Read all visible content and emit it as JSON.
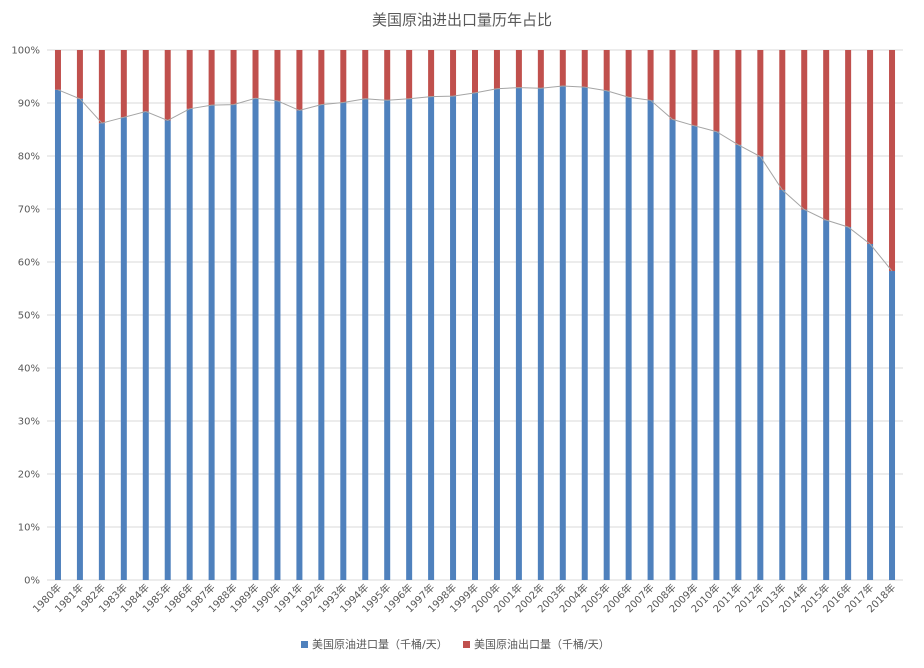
{
  "chart_data": {
    "type": "bar",
    "stacked": true,
    "percent_stacked": true,
    "title": "美国原油进出口量历年占比",
    "categories": [
      "1980年",
      "1981年",
      "1982年",
      "1983年",
      "1984年",
      "1985年",
      "1986年",
      "1987年",
      "1988年",
      "1989年",
      "1990年",
      "1991年",
      "1992年",
      "1993年",
      "1994年",
      "1995年",
      "1996年",
      "1997年",
      "1998年",
      "1999年",
      "2000年",
      "2001年",
      "2002年",
      "2003年",
      "2004年",
      "2005年",
      "2006年",
      "2007年",
      "2008年",
      "2009年",
      "2010年",
      "2011年",
      "2012年",
      "2013年",
      "2014年",
      "2015年",
      "2016年",
      "2017年",
      "2018年"
    ],
    "series": [
      {
        "name": "美国原油进口量（千桶/天）",
        "color": "#4f81bd",
        "values": [
          92.5,
          90.8,
          86.2,
          87.3,
          88.4,
          86.7,
          88.9,
          89.6,
          89.7,
          90.9,
          90.4,
          88.6,
          89.7,
          90.1,
          90.8,
          90.5,
          90.8,
          91.2,
          91.3,
          91.9,
          92.7,
          92.9,
          92.8,
          93.2,
          93.0,
          92.3,
          91.1,
          90.5,
          86.9,
          85.7,
          84.6,
          82.1,
          79.9,
          73.6,
          69.9,
          67.9,
          66.6,
          63.4,
          58.3
        ]
      },
      {
        "name": "美国原油出口量（千桶/天）",
        "color": "#c0504d",
        "values": [
          7.5,
          9.2,
          13.8,
          12.7,
          11.6,
          13.3,
          11.1,
          10.4,
          10.3,
          9.1,
          9.6,
          11.4,
          10.3,
          9.9,
          9.2,
          9.5,
          9.2,
          8.8,
          8.7,
          8.1,
          7.3,
          7.1,
          7.2,
          6.8,
          7.0,
          7.7,
          8.9,
          9.5,
          13.1,
          14.3,
          15.4,
          17.9,
          20.1,
          26.4,
          30.1,
          32.1,
          33.4,
          36.6,
          41.7
        ]
      }
    ],
    "y_ticks": [
      "0%",
      "10%",
      "20%",
      "30%",
      "40%",
      "50%",
      "60%",
      "70%",
      "80%",
      "90%",
      "100%"
    ],
    "ylim": [
      0,
      100
    ],
    "grid": true,
    "legend_position": "bottom",
    "trend_line_color": "#a5a5a5"
  }
}
